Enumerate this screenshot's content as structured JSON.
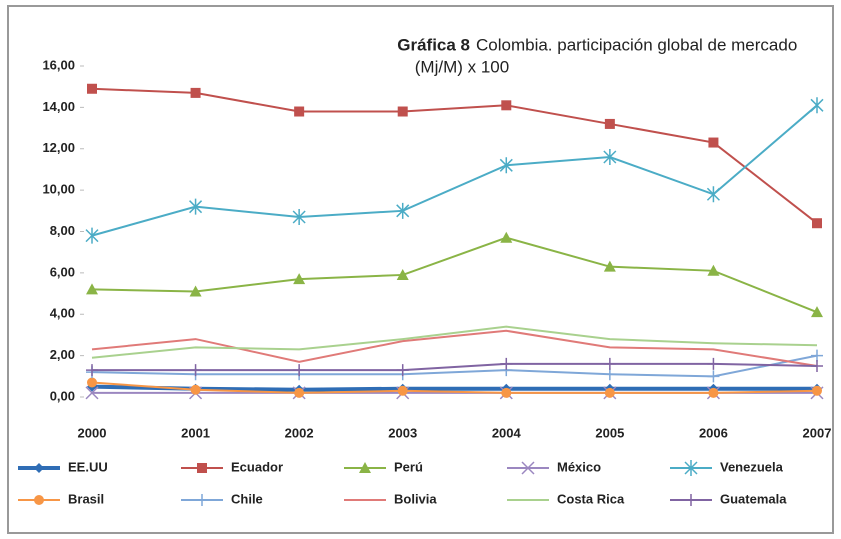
{
  "chart_data": {
    "type": "line",
    "title_label": "Gráfica 8",
    "title": "Colombia. participación global de mercado",
    "subtitle": "(Mj/M) x 100",
    "categories": [
      "2000",
      "2001",
      "2002",
      "2003",
      "2004",
      "2005",
      "2006",
      "2007"
    ],
    "ylim": [
      0,
      16
    ],
    "yticks": [
      {
        "value": 0,
        "label": "0,00"
      },
      {
        "value": 2,
        "label": "2,00"
      },
      {
        "value": 4,
        "label": "4,00"
      },
      {
        "value": 6,
        "label": "6,00"
      },
      {
        "value": 8,
        "label": "8,00"
      },
      {
        "value": 10,
        "label": "10,00"
      },
      {
        "value": 12,
        "label": "12,00"
      },
      {
        "value": 14,
        "label": "14,00"
      },
      {
        "value": 16,
        "label": "16,00"
      }
    ],
    "series": [
      {
        "name": "EE.UU",
        "color": "#2f6db5",
        "marker": "diamond",
        "values": [
          0.5,
          0.4,
          0.35,
          0.4,
          0.4,
          0.4,
          0.4,
          0.4
        ]
      },
      {
        "name": "Ecuador",
        "color": "#c0504d",
        "marker": "square",
        "values": [
          14.9,
          14.7,
          13.8,
          13.8,
          14.1,
          13.2,
          12.3,
          8.4
        ]
      },
      {
        "name": "Perú",
        "color": "#8ab446",
        "marker": "triangle",
        "values": [
          5.2,
          5.1,
          5.7,
          5.9,
          7.7,
          6.3,
          6.1,
          4.1
        ]
      },
      {
        "name": "México",
        "color": "#9b87c0",
        "marker": "x",
        "values": [
          0.2,
          0.2,
          0.2,
          0.2,
          0.2,
          0.2,
          0.2,
          0.2
        ]
      },
      {
        "name": "Venezuela",
        "color": "#4bacc6",
        "marker": "star",
        "values": [
          7.8,
          9.2,
          8.7,
          9.0,
          11.2,
          11.6,
          9.8,
          14.1
        ]
      },
      {
        "name": "Brasil",
        "color": "#f79646",
        "marker": "circle",
        "values": [
          0.7,
          0.35,
          0.2,
          0.3,
          0.2,
          0.2,
          0.2,
          0.3
        ]
      },
      {
        "name": "Chile",
        "color": "#7fa7d8",
        "marker": "plus",
        "values": [
          1.2,
          1.1,
          1.1,
          1.1,
          1.3,
          1.1,
          1.0,
          2.0
        ]
      },
      {
        "name": "Bolivia",
        "color": "#e07a78",
        "marker": "none",
        "values": [
          2.3,
          2.8,
          1.7,
          2.7,
          3.2,
          2.4,
          2.3,
          1.5
        ]
      },
      {
        "name": "Costa Rica",
        "color": "#a9d18e",
        "marker": "none",
        "values": [
          1.9,
          2.4,
          2.3,
          2.8,
          3.4,
          2.8,
          2.6,
          2.5
        ]
      },
      {
        "name": "Guatemala",
        "color": "#8064a2",
        "marker": "plus",
        "values": [
          1.3,
          1.3,
          1.3,
          1.3,
          1.6,
          1.6,
          1.6,
          1.5
        ]
      }
    ]
  }
}
